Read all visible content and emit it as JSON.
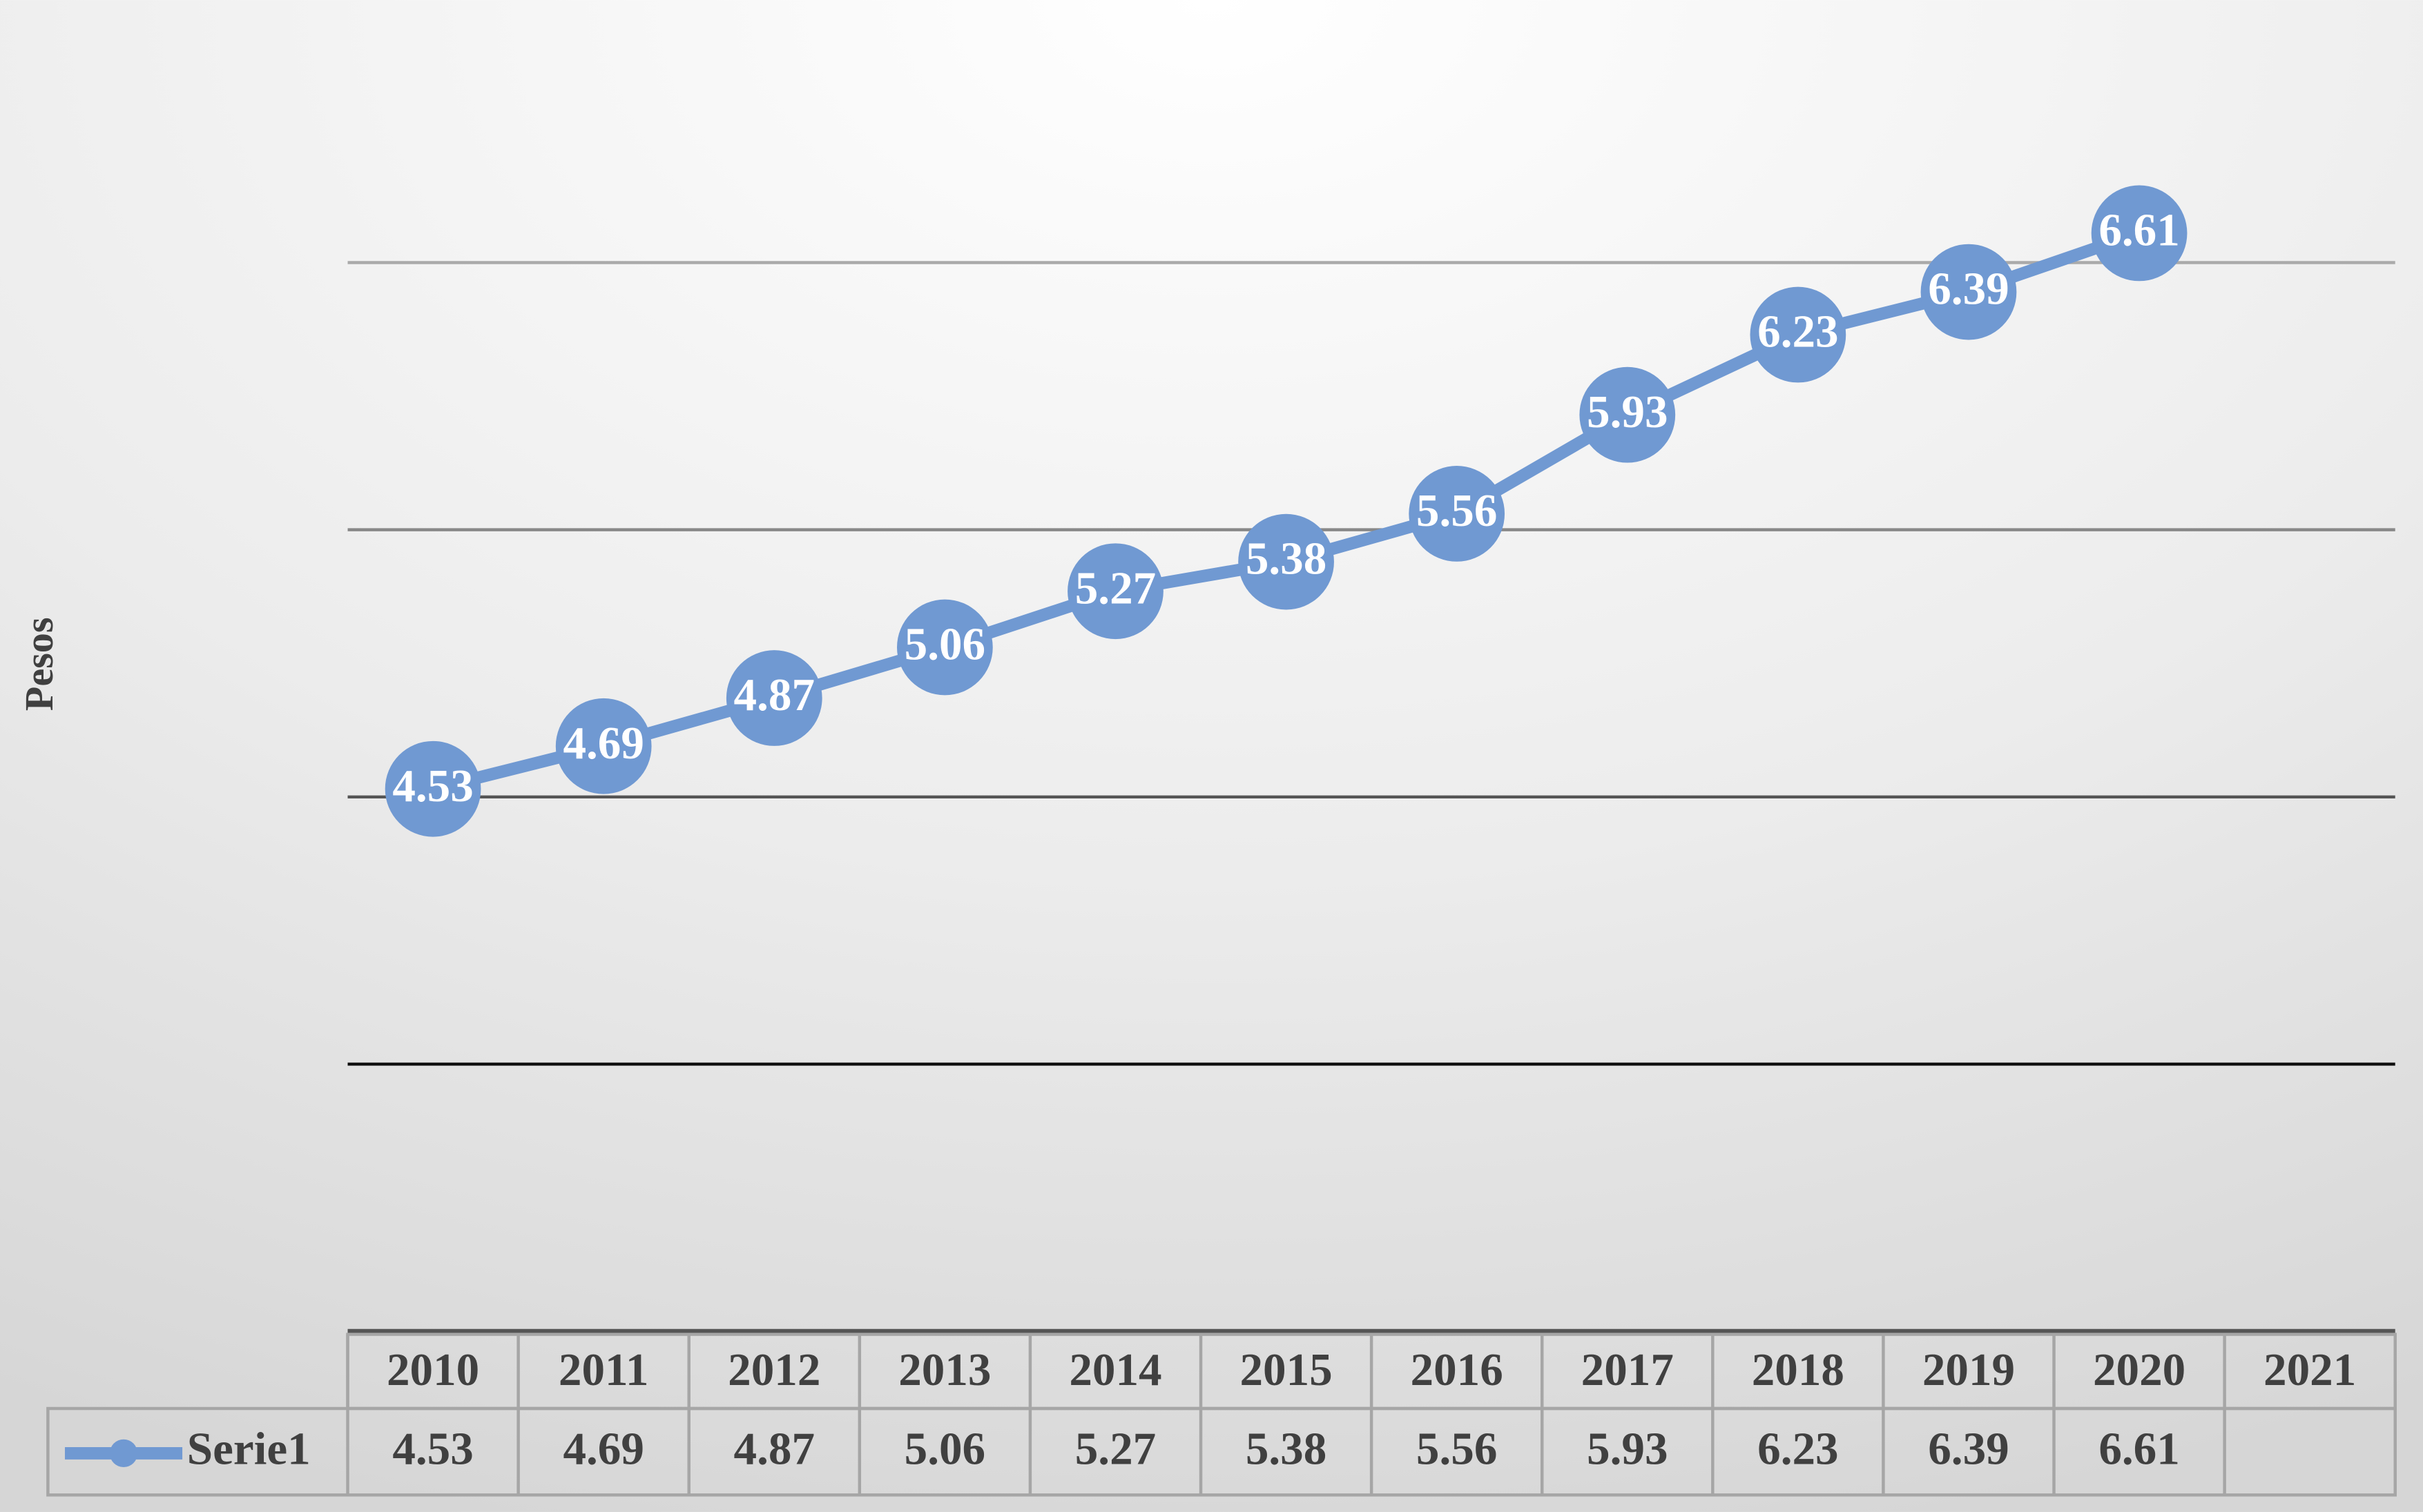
{
  "chart_data": {
    "type": "line",
    "y_label": "Pesos",
    "categories": [
      "2010",
      "2011",
      "2012",
      "2013",
      "2014",
      "2015",
      "2016",
      "2017",
      "2018",
      "2019",
      "2020",
      "2021"
    ],
    "series": [
      {
        "name": "Serie1",
        "color": "#7099d2",
        "values": [
          4.53,
          4.69,
          4.87,
          5.06,
          5.27,
          5.38,
          5.56,
          5.93,
          6.23,
          6.39,
          6.61,
          null
        ]
      }
    ],
    "ylim": [
      2.5,
      7.5
    ],
    "yticks": [
      3.5,
      4.5,
      5.5,
      6.5
    ],
    "grid": true,
    "data_table": true
  }
}
